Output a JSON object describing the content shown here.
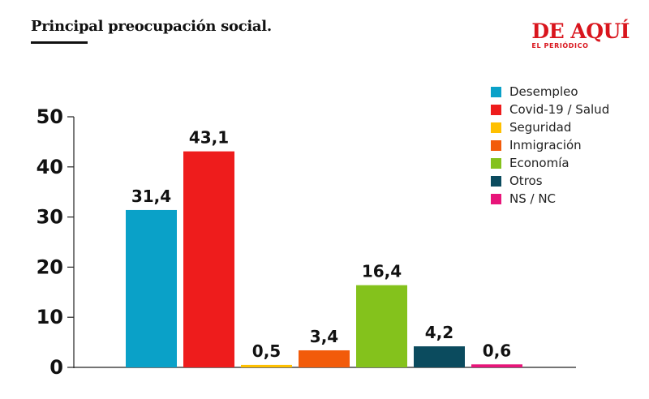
{
  "title": "Principal preocupación social.",
  "brand": {
    "name": "DE AQUÍ",
    "subtitle": "EL PERIÓDICO",
    "color": "#d9151d"
  },
  "chart_data": {
    "type": "bar",
    "categories": [
      "Desempleo",
      "Covid-19 / Salud",
      "Seguridad",
      "Inmigración",
      "Economía",
      "Otros",
      "NS / NC"
    ],
    "values": [
      31.4,
      43.1,
      0.5,
      3.4,
      16.4,
      4.2,
      0.6
    ],
    "value_labels": [
      "31,4",
      "43,1",
      "0,5",
      "3,4",
      "16,4",
      "4,2",
      "0,6"
    ],
    "colors": [
      "#0aa1c8",
      "#ee1c1c",
      "#ffc000",
      "#f25b0a",
      "#84c21c",
      "#0b4b5e",
      "#e8157a"
    ],
    "ylim": [
      0,
      50
    ],
    "yticks": [
      0,
      10,
      20,
      30,
      40,
      50
    ],
    "title": "Principal preocupación social.",
    "xlabel": "",
    "ylabel": "",
    "grid": false,
    "legend": "top-right"
  }
}
